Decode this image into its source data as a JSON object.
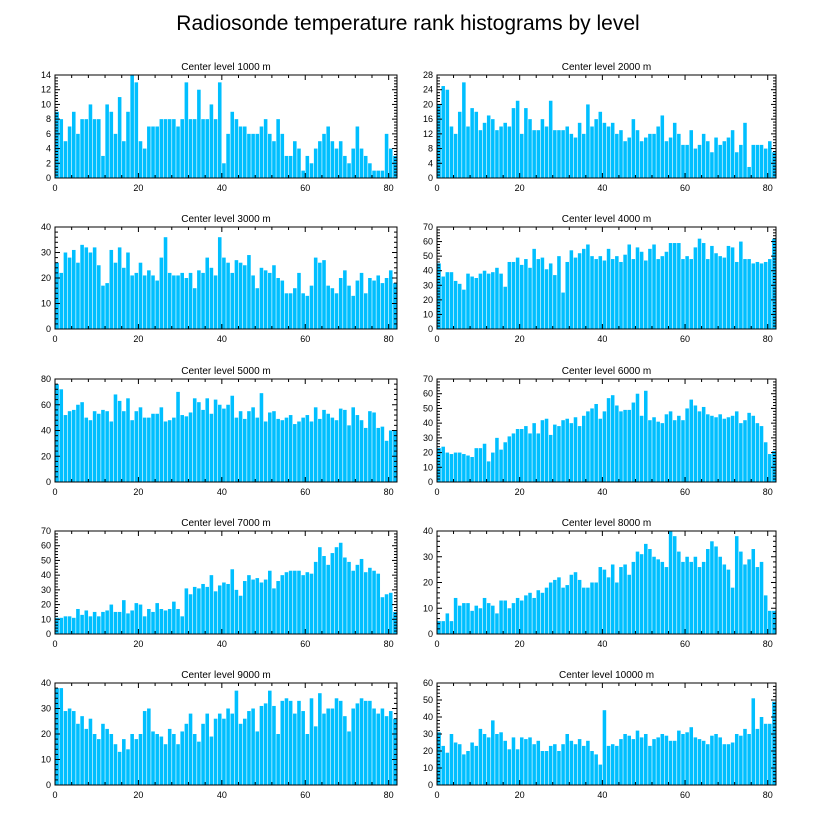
{
  "title": "Radiosonde temperature rank histograms by level",
  "colors": {
    "bar": "#00BFFF",
    "axis": "#000000",
    "background": "#ffffff"
  },
  "chart_data": [
    {
      "type": "bar",
      "title": "Center level 1000 m",
      "xlabel": "",
      "ylabel": "",
      "xlim": [
        0,
        82
      ],
      "ylim": [
        0,
        14
      ],
      "xticks": [
        0,
        20,
        40,
        60,
        80
      ],
      "yticks": [
        0,
        2,
        4,
        6,
        8,
        10,
        12,
        14
      ],
      "values": [
        9,
        8,
        5,
        7,
        9,
        6,
        8,
        8,
        10,
        8,
        8,
        3,
        10,
        9,
        6,
        11,
        5,
        9,
        14,
        13,
        5,
        4,
        7,
        7,
        7,
        8,
        8,
        8,
        8,
        7,
        8,
        13,
        8,
        8,
        12,
        8,
        8,
        10,
        8,
        13,
        2,
        6,
        9,
        8,
        7,
        7,
        6,
        6,
        6,
        7,
        8,
        6,
        5,
        8,
        6,
        3,
        3,
        5,
        4,
        1,
        3,
        2,
        4,
        5,
        6,
        7,
        5,
        4,
        5,
        3,
        2,
        4,
        7,
        4,
        3,
        2,
        1,
        1,
        1,
        6,
        4,
        3
      ]
    },
    {
      "type": "bar",
      "title": "Center level 2000 m",
      "xlabel": "",
      "ylabel": "",
      "xlim": [
        0,
        82
      ],
      "ylim": [
        0,
        28
      ],
      "xticks": [
        0,
        20,
        40,
        60,
        80
      ],
      "yticks": [
        0,
        4,
        8,
        12,
        16,
        20,
        24,
        28
      ],
      "values": [
        20,
        25,
        24,
        14,
        12,
        18,
        26,
        14,
        19,
        18,
        13,
        15,
        17,
        16,
        13,
        14,
        15,
        14,
        19,
        21,
        12,
        19,
        16,
        13,
        13,
        16,
        14,
        21,
        13,
        13,
        13,
        14,
        12,
        11,
        15,
        12,
        20,
        14,
        16,
        18,
        15,
        14,
        15,
        12,
        13,
        10,
        11,
        16,
        13,
        10,
        11,
        12,
        12,
        14,
        17,
        10,
        11,
        15,
        12,
        9,
        9,
        13,
        8,
        9,
        12,
        10,
        7,
        11,
        9,
        10,
        11,
        13,
        7,
        9,
        15,
        3,
        9,
        9,
        9,
        8,
        10,
        7
      ]
    },
    {
      "type": "bar",
      "title": "Center level 3000 m",
      "xlabel": "",
      "ylabel": "",
      "xlim": [
        0,
        82
      ],
      "ylim": [
        0,
        40
      ],
      "xticks": [
        0,
        20,
        40,
        60,
        80
      ],
      "yticks": [
        0,
        10,
        20,
        30,
        40
      ],
      "values": [
        26,
        22,
        30,
        28,
        31,
        26,
        33,
        32,
        30,
        32,
        25,
        17,
        18,
        31,
        26,
        32,
        24,
        30,
        21,
        22,
        26,
        21,
        23,
        21,
        19,
        28,
        36,
        22,
        21,
        21,
        22,
        20,
        22,
        16,
        23,
        22,
        28,
        24,
        21,
        36,
        28,
        26,
        22,
        27,
        26,
        25,
        29,
        21,
        16,
        24,
        23,
        22,
        25,
        20,
        19,
        14,
        14,
        16,
        22,
        14,
        13,
        17,
        28,
        26,
        27,
        17,
        16,
        14,
        20,
        23,
        17,
        13,
        19,
        22,
        14,
        20,
        19,
        21,
        18,
        20,
        23,
        18
      ]
    },
    {
      "type": "bar",
      "title": "Center level 4000 m",
      "xlabel": "",
      "ylabel": "",
      "xlim": [
        0,
        82
      ],
      "ylim": [
        0,
        70
      ],
      "xticks": [
        0,
        20,
        40,
        60,
        80
      ],
      "yticks": [
        0,
        10,
        20,
        30,
        40,
        50,
        60,
        70
      ],
      "values": [
        45,
        36,
        39,
        39,
        33,
        31,
        27,
        38,
        36,
        35,
        38,
        40,
        38,
        39,
        42,
        38,
        29,
        46,
        46,
        49,
        44,
        48,
        42,
        55,
        48,
        49,
        41,
        45,
        37,
        50,
        25,
        46,
        54,
        49,
        52,
        55,
        58,
        50,
        48,
        50,
        47,
        55,
        48,
        50,
        46,
        51,
        58,
        48,
        56,
        53,
        47,
        55,
        58,
        48,
        50,
        53,
        59,
        59,
        59,
        48,
        50,
        48,
        56,
        62,
        59,
        48,
        57,
        52,
        50,
        49,
        57,
        56,
        46,
        60,
        48,
        48,
        45,
        46,
        45,
        46,
        48,
        62
      ]
    },
    {
      "type": "bar",
      "title": "Center level 5000 m",
      "xlabel": "",
      "ylabel": "",
      "xlim": [
        0,
        82
      ],
      "ylim": [
        0,
        80
      ],
      "xticks": [
        0,
        20,
        40,
        60,
        80
      ],
      "yticks": [
        0,
        20,
        40,
        60,
        80
      ],
      "values": [
        76,
        72,
        52,
        55,
        56,
        60,
        62,
        50,
        48,
        55,
        53,
        56,
        55,
        47,
        68,
        63,
        55,
        65,
        48,
        55,
        58,
        50,
        50,
        53,
        53,
        58,
        47,
        48,
        50,
        70,
        52,
        51,
        54,
        65,
        62,
        56,
        65,
        53,
        64,
        60,
        57,
        60,
        67,
        50,
        55,
        49,
        55,
        58,
        50,
        69,
        47,
        54,
        55,
        49,
        48,
        50,
        52,
        45,
        47,
        50,
        52,
        47,
        58,
        49,
        56,
        53,
        50,
        48,
        57,
        56,
        44,
        58,
        52,
        48,
        42,
        55,
        54,
        42,
        43,
        32,
        40,
        40
      ]
    },
    {
      "type": "bar",
      "title": "Center level 6000 m",
      "xlabel": "",
      "ylabel": "",
      "xlim": [
        0,
        82
      ],
      "ylim": [
        0,
        70
      ],
      "xticks": [
        0,
        20,
        40,
        60,
        80
      ],
      "yticks": [
        0,
        10,
        20,
        30,
        40,
        50,
        60,
        70
      ],
      "values": [
        23,
        24,
        20,
        19,
        20,
        20,
        19,
        18,
        17,
        23,
        23,
        26,
        14,
        20,
        30,
        22,
        27,
        31,
        33,
        36,
        36,
        38,
        33,
        40,
        33,
        42,
        43,
        32,
        39,
        38,
        42,
        43,
        40,
        44,
        38,
        45,
        48,
        50,
        53,
        43,
        48,
        57,
        59,
        52,
        48,
        49,
        49,
        54,
        60,
        45,
        62,
        42,
        44,
        41,
        40,
        46,
        48,
        42,
        45,
        42,
        50,
        56,
        52,
        48,
        51,
        46,
        45,
        44,
        46,
        43,
        44,
        45,
        48,
        40,
        42,
        47,
        45,
        40,
        38,
        27,
        19,
        21
      ]
    },
    {
      "type": "bar",
      "title": "Center level 7000 m",
      "xlabel": "",
      "ylabel": "",
      "xlim": [
        0,
        82
      ],
      "ylim": [
        0,
        70
      ],
      "xticks": [
        0,
        20,
        40,
        60,
        80
      ],
      "yticks": [
        0,
        10,
        20,
        30,
        40,
        50,
        60,
        70
      ],
      "values": [
        11,
        11,
        12,
        12,
        11,
        17,
        13,
        16,
        12,
        15,
        12,
        15,
        16,
        20,
        15,
        15,
        23,
        14,
        16,
        21,
        20,
        12,
        17,
        15,
        21,
        17,
        16,
        17,
        22,
        17,
        12,
        31,
        27,
        32,
        31,
        34,
        32,
        40,
        29,
        33,
        35,
        34,
        44,
        30,
        26,
        36,
        40,
        37,
        38,
        35,
        37,
        43,
        31,
        36,
        40,
        42,
        43,
        43,
        43,
        40,
        42,
        41,
        49,
        59,
        53,
        47,
        55,
        59,
        62,
        52,
        49,
        43,
        47,
        51,
        42,
        45,
        43,
        41,
        25,
        27,
        28,
        15
      ]
    },
    {
      "type": "bar",
      "title": "Center level 8000 m",
      "xlabel": "",
      "ylabel": "",
      "xlim": [
        0,
        82
      ],
      "ylim": [
        0,
        40
      ],
      "xticks": [
        0,
        20,
        40,
        60,
        80
      ],
      "yticks": [
        0,
        10,
        20,
        30,
        40
      ],
      "values": [
        5,
        5,
        8,
        5,
        14,
        11,
        12,
        12,
        9,
        11,
        10,
        14,
        12,
        11,
        8,
        13,
        13,
        10,
        12,
        14,
        13,
        15,
        16,
        14,
        17,
        16,
        18,
        20,
        21,
        22,
        18,
        19,
        23,
        24,
        21,
        18,
        18,
        20,
        20,
        26,
        25,
        22,
        27,
        20,
        26,
        27,
        23,
        28,
        32,
        31,
        35,
        33,
        30,
        29,
        28,
        26,
        40,
        38,
        32,
        28,
        30,
        28,
        30,
        26,
        28,
        33,
        36,
        34,
        30,
        27,
        25,
        18,
        38,
        32,
        27,
        29,
        33,
        26,
        28,
        15,
        9,
        9
      ]
    },
    {
      "type": "bar",
      "title": "Center level 9000 m",
      "xlabel": "",
      "ylabel": "",
      "xlim": [
        0,
        82
      ],
      "ylim": [
        0,
        40
      ],
      "xticks": [
        0,
        20,
        40,
        60,
        80
      ],
      "yticks": [
        0,
        10,
        20,
        30,
        40
      ],
      "values": [
        38,
        38,
        29,
        30,
        29,
        24,
        27,
        22,
        26,
        20,
        18,
        24,
        22,
        20,
        16,
        13,
        18,
        14,
        20,
        18,
        20,
        29,
        30,
        21,
        20,
        19,
        16,
        22,
        20,
        16,
        21,
        24,
        28,
        20,
        17,
        24,
        28,
        19,
        26,
        28,
        26,
        30,
        28,
        37,
        24,
        26,
        29,
        30,
        21,
        31,
        32,
        37,
        31,
        20,
        33,
        34,
        33,
        28,
        33,
        29,
        20,
        34,
        23,
        36,
        28,
        30,
        30,
        34,
        33,
        27,
        21,
        30,
        32,
        34,
        33,
        33,
        30,
        28,
        30,
        27,
        29,
        26
      ]
    },
    {
      "type": "bar",
      "title": "Center level 10000 m",
      "xlabel": "",
      "ylabel": "",
      "xlim": [
        0,
        82
      ],
      "ylim": [
        0,
        60
      ],
      "xticks": [
        0,
        20,
        40,
        60,
        80
      ],
      "yticks": [
        0,
        10,
        20,
        30,
        40,
        50,
        60
      ],
      "values": [
        31,
        23,
        19,
        30,
        25,
        24,
        18,
        20,
        25,
        23,
        33,
        30,
        28,
        38,
        30,
        31,
        26,
        21,
        28,
        21,
        28,
        27,
        28,
        24,
        26,
        20,
        20,
        23,
        24,
        20,
        24,
        30,
        26,
        24,
        27,
        23,
        26,
        20,
        18,
        12,
        44,
        23,
        24,
        23,
        27,
        30,
        29,
        27,
        32,
        28,
        30,
        23,
        27,
        28,
        30,
        29,
        26,
        26,
        32,
        30,
        31,
        34,
        28,
        27,
        26,
        24,
        29,
        30,
        28,
        24,
        24,
        25,
        30,
        29,
        33,
        30,
        51,
        33,
        40,
        36,
        36,
        49
      ]
    }
  ]
}
